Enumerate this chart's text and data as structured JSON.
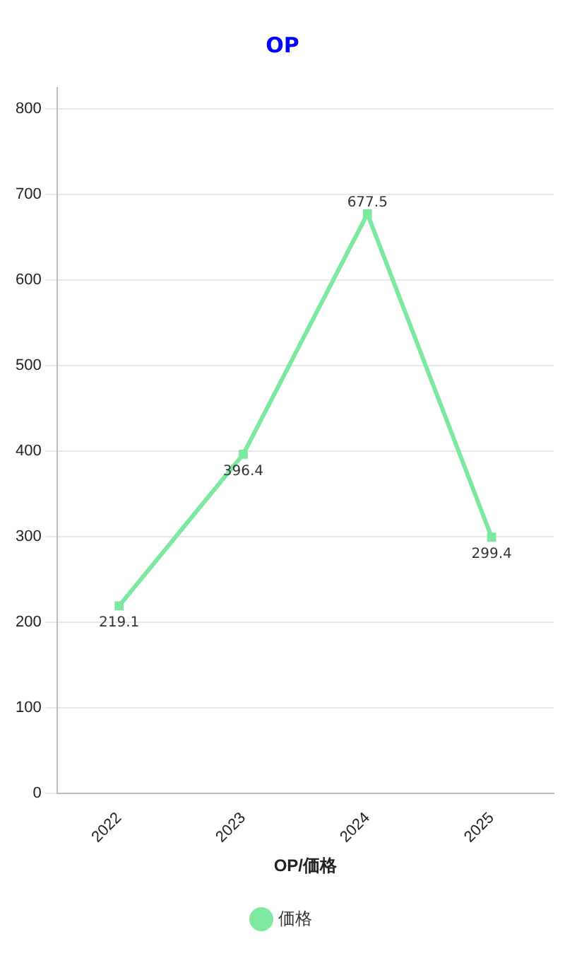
{
  "chart_data": {
    "type": "line",
    "title": "OP",
    "xlabel": "OP/価格",
    "categories": [
      "2022",
      "2023",
      "2024",
      "2025"
    ],
    "series": [
      {
        "name": "価格",
        "color": "#7de8a0",
        "values": [
          219.1,
          396.4,
          677.5,
          299.4
        ]
      }
    ],
    "ylim": [
      0,
      825
    ],
    "yticks": [
      0,
      100,
      200,
      300,
      400,
      500,
      600,
      700,
      800
    ],
    "grid": "y",
    "legend": "bottom",
    "marker": "square",
    "line_style": "solid",
    "data_labels": true
  }
}
